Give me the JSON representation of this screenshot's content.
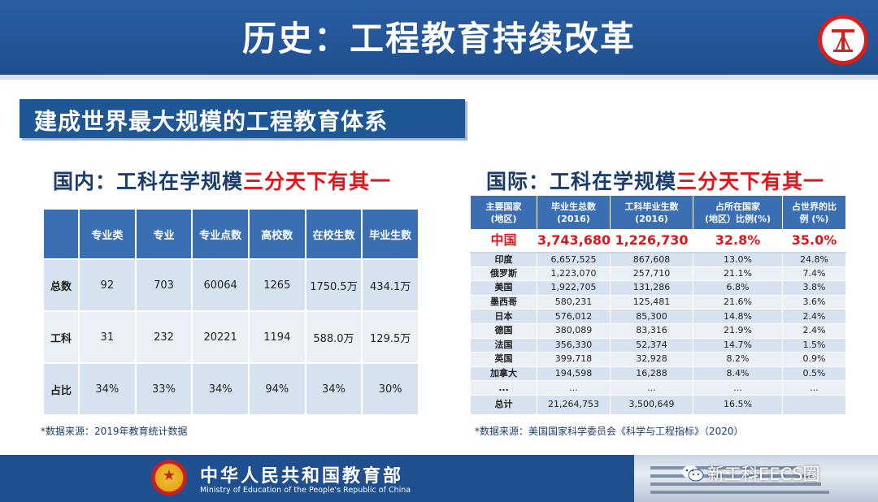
{
  "header": {
    "title": "历史：工程教育持续改革"
  },
  "banner": {
    "text": "建成世界最大规模的工程教育体系"
  },
  "domestic": {
    "subtitle_prefix": "国内：工科在学规模",
    "subtitle_highlight": "三分天下有其一",
    "columns": [
      "",
      "专业类",
      "专业",
      "专业点数",
      "高校数",
      "在校生数",
      "毕业生数"
    ],
    "rows": [
      {
        "label": "总数",
        "values": [
          "92",
          "703",
          "60064",
          "1265",
          "1750.5万",
          "434.1万"
        ]
      },
      {
        "label": "工科",
        "values": [
          "31",
          "232",
          "20221",
          "1194",
          "588.0万",
          "129.5万"
        ]
      },
      {
        "label": "占比",
        "values": [
          "34%",
          "33%",
          "34%",
          "94%",
          "34%",
          "30%"
        ]
      }
    ],
    "source": "*数据来源：2019年教育统计数据"
  },
  "international": {
    "subtitle_prefix": "国际：工科在学规模",
    "subtitle_highlight": "三分天下有其一",
    "columns": [
      "主要国家\n(地区)",
      "毕业生总数\n(2016)",
      "工科毕业生数\n(2016)",
      "占所在国家\n(地区）比例(%)",
      "占世界的比\n例 (%)"
    ],
    "china": [
      "中国",
      "3,743,680",
      "1,226,730",
      "32.8%",
      "35.0%"
    ],
    "rows": [
      [
        "印度",
        "6,657,525",
        "867,608",
        "13.0%",
        "24.8%"
      ],
      [
        "俄罗斯",
        "1,223,070",
        "257,710",
        "21.1%",
        "7.4%"
      ],
      [
        "美国",
        "1,922,705",
        "131,286",
        "6.8%",
        "3.8%"
      ],
      [
        "墨西哥",
        "580,231",
        "125,481",
        "21.6%",
        "3.6%"
      ],
      [
        "日本",
        "576,012",
        "85,300",
        "14.8%",
        "2.4%"
      ],
      [
        "德国",
        "380,089",
        "83,316",
        "21.9%",
        "2.4%"
      ],
      [
        "法国",
        "356,330",
        "52,374",
        "14.7%",
        "1.5%"
      ],
      [
        "英国",
        "399,718",
        "32,928",
        "8.2%",
        "0.9%"
      ],
      [
        "加拿大",
        "194,598",
        "16,288",
        "8.4%",
        "0.5%"
      ],
      [
        "...",
        "...",
        "...",
        "...",
        "..."
      ]
    ],
    "total": [
      "总计",
      "21,264,753",
      "3,500,649",
      "16.5%",
      ""
    ],
    "source": "*数据来源：美国国家科学委员会《科学与工程指标》（2020）"
  },
  "footer": {
    "ministry_cn": "中华人民共和国教育部",
    "ministry_en": "Ministry of Education of the People's Republic of China",
    "watermark": "新工科EECS圈"
  },
  "colors": {
    "header_blue": "#1f4f8f",
    "table_header": "#3a70b3",
    "highlight_red": "#e0161b",
    "cell_light": "#d7e2f0"
  },
  "icons": {
    "logo": "university-logo-icon",
    "emblem": "national-emblem-icon",
    "wechat": "wechat-icon"
  }
}
